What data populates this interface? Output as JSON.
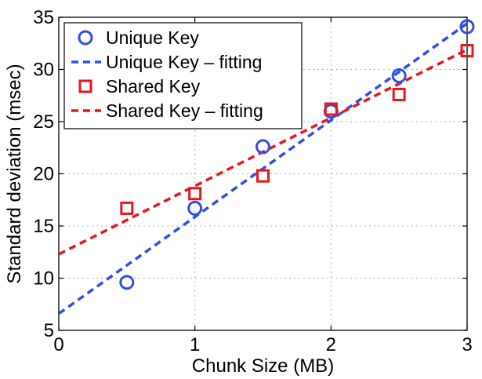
{
  "chart_data": {
    "type": "scatter",
    "xlabel": "Chunk Size (MB)",
    "ylabel": "Standard deviation (msec)",
    "xlim": [
      0,
      3
    ],
    "ylim": [
      5,
      35
    ],
    "xticks": [
      "0",
      "1",
      "2",
      "3"
    ],
    "yticks": [
      "5",
      "10",
      "15",
      "20",
      "25",
      "30",
      "35"
    ],
    "grid": true,
    "legend_position": "top-left",
    "series": [
      {
        "name": "Unique Key",
        "kind": "points",
        "marker": "circle",
        "color": "#2f4fe6",
        "x": [
          0.5,
          1.0,
          1.5,
          2.0,
          2.5,
          3.0
        ],
        "y": [
          9.6,
          16.7,
          22.6,
          26.0,
          29.4,
          34.1
        ]
      },
      {
        "name": "Unique Key – fitting",
        "kind": "line",
        "style": "dashed",
        "color": "#2f4fe6",
        "x": [
          0,
          3
        ],
        "y": [
          6.6,
          34.4
        ]
      },
      {
        "name": "Shared Key",
        "kind": "points",
        "marker": "square",
        "color": "#e8161b",
        "x": [
          0.5,
          1.0,
          1.5,
          2.0,
          2.5,
          3.0
        ],
        "y": [
          16.7,
          18.1,
          19.8,
          26.2,
          27.6,
          31.8
        ]
      },
      {
        "name": "Shared Key – fitting",
        "kind": "line",
        "style": "dashed",
        "color": "#e8161b",
        "x": [
          0,
          3
        ],
        "y": [
          12.3,
          31.9
        ]
      }
    ]
  }
}
